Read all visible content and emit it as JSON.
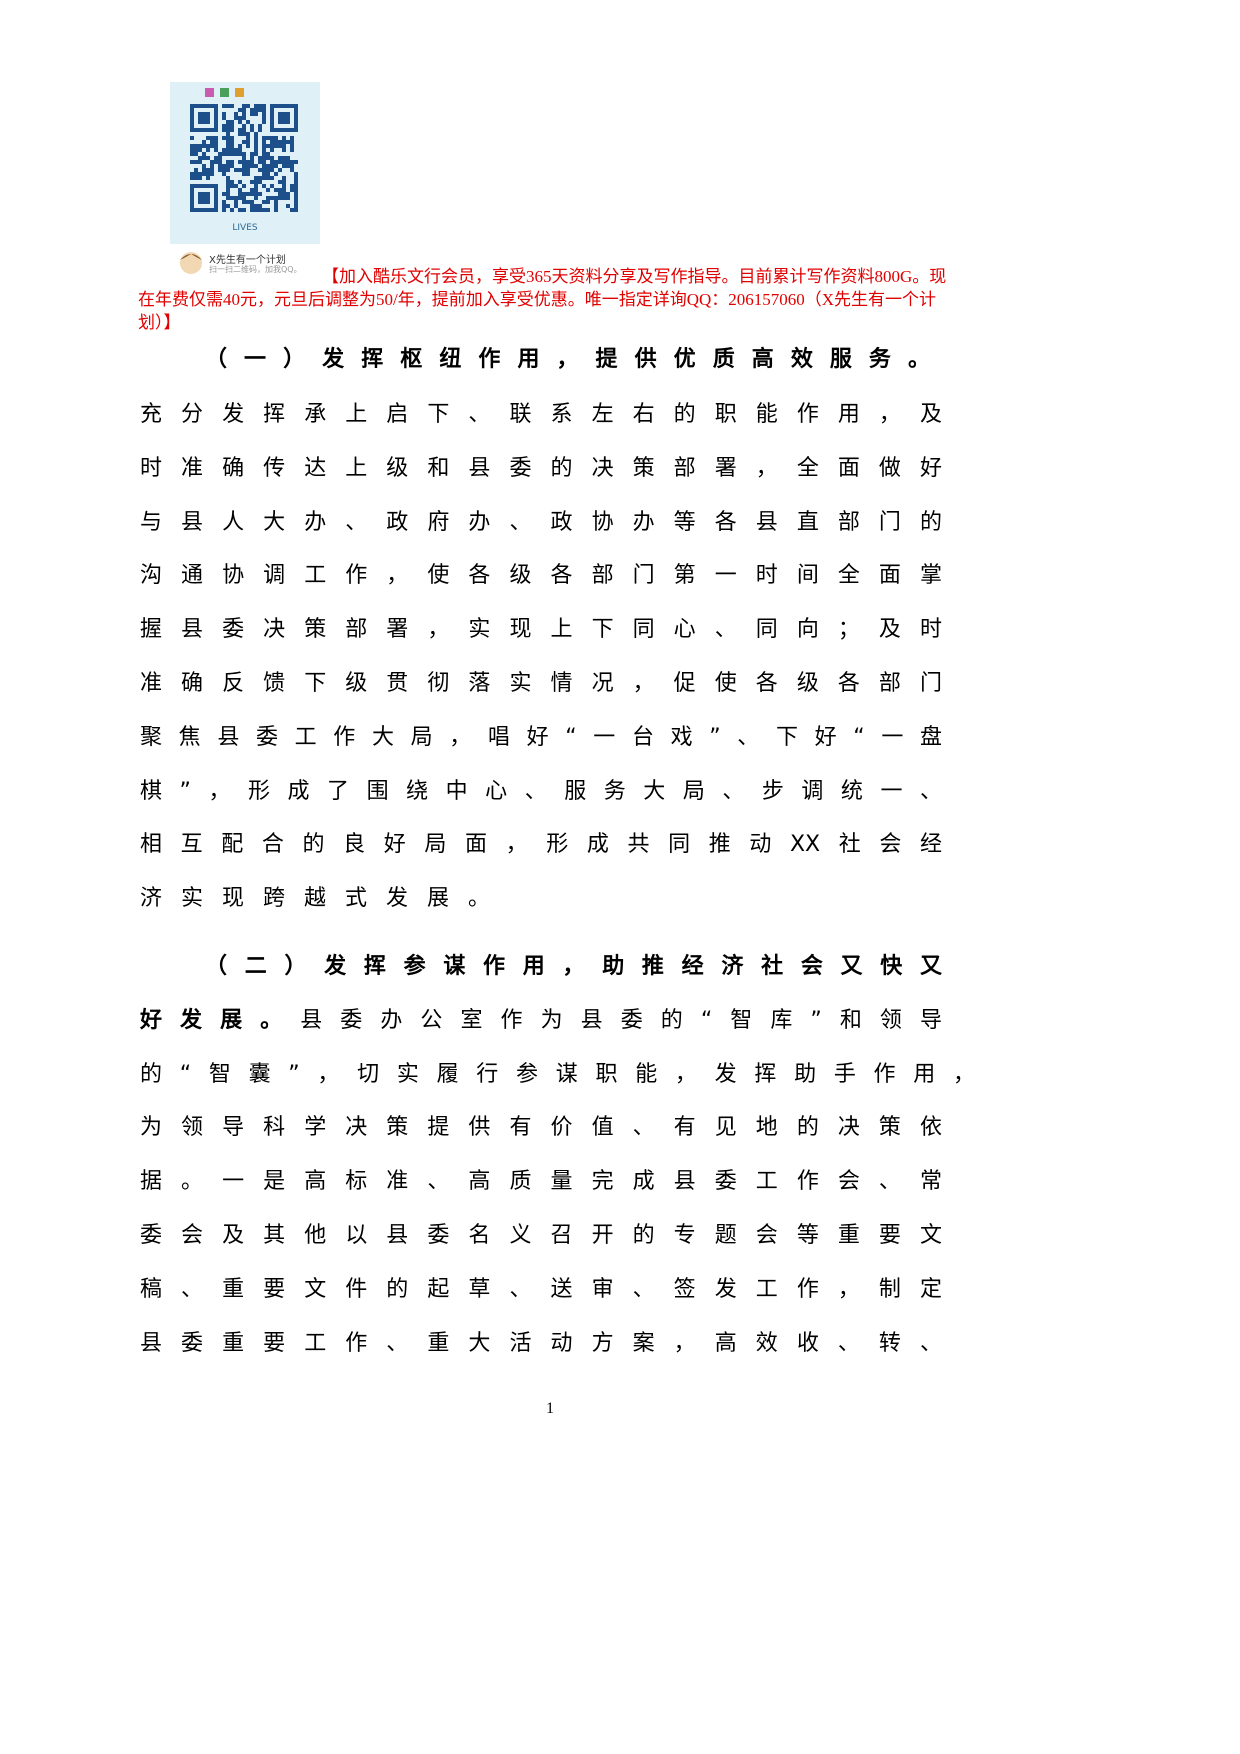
{
  "qr_caption": {
    "name": "X先生有一个计划",
    "hint": "扫一扫二维码，加我QQ。"
  },
  "qr_label": "LIVES",
  "ad_text": "【加入酷乐文行会员，享受365天资料分享及写作指导。目前累计写作资料800G。现在年费仅需40元，元旦后调整为50/年，提前加入享受优惠。唯一指定详询QQ：206157060（X先生有一个计划）】",
  "section1": {
    "heading": "（一）发挥枢纽作用，提供优质高效服务。",
    "lines": [
      "充分发挥承上启下、联系左右的职能作用，及",
      "时准确传达上级和县委的决策部署，全面做好",
      "与县人大办、政府办、政协办等各县直部门的",
      "沟通协调工作，使各级各部门第一时间全面掌",
      "握县委决策部署，实现上下同心、同向；及时",
      "准确反馈下级贯彻落实情况，促使各级各部门",
      "聚焦县委工作大局，唱好“一台戏”、下好“一盘",
      "棋”，形成了围绕中心、服务大局、步调统一、",
      "相互配合的良好局面，形成共同推动XX社会经",
      "济实现跨越式发展。"
    ]
  },
  "section2": {
    "heading_lines": [
      "（二）发挥参谋作用，助推经济社会又快又",
      "好发展。"
    ],
    "lines": [
      "县委办公室作为县委的“智库”和领导",
      "的“智囊”，切实履行参谋职能，发挥助手作用，",
      "为领导科学决策提供有价值、有见地的决策依",
      "据。一是高标准、高质量完成县委工作会、常",
      "委会及其他以县委名义召开的专题会等重要文",
      "稿、重要文件的起草、送审、签发工作，制定",
      "县委重要工作、重大活动方案，高效收、转、"
    ]
  },
  "page_number": "1"
}
